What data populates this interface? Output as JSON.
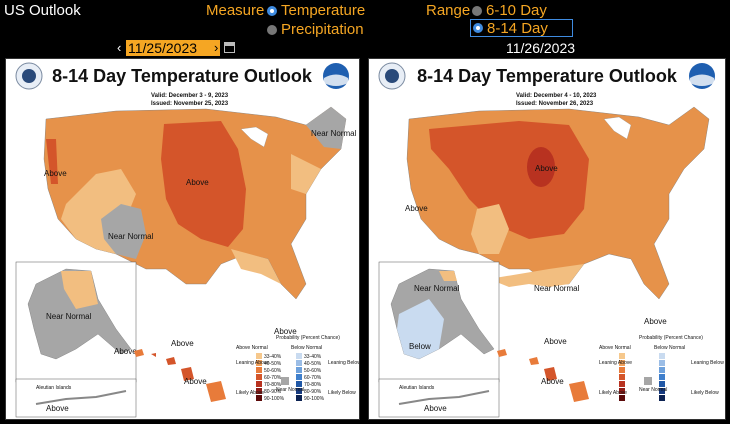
{
  "app": {
    "title": "US Outlook"
  },
  "measure": {
    "label": "Measure",
    "options": [
      {
        "label": "Temperature",
        "selected": true
      },
      {
        "label": "Precipitation",
        "selected": false
      }
    ]
  },
  "range": {
    "label": "Range",
    "options": [
      {
        "label": "6-10 Day",
        "selected": false
      },
      {
        "label": "8-14 Day",
        "selected": true
      }
    ]
  },
  "dates": {
    "left": "11/25/2023",
    "right": "11/26/2023",
    "prev_glyph": "‹",
    "next_glyph": "›"
  },
  "maps": [
    {
      "title": "8-14 Day Temperature Outlook",
      "valid": "Valid:  December 3 - 9, 2023",
      "issued": "Issued:  November 25, 2023",
      "labels": [
        "Above",
        "Above",
        "Near Normal",
        "Near Normal",
        "Above",
        "Near Normal",
        "Above",
        "Above",
        "Above",
        "Above",
        "Aleutian Islands",
        "Above"
      ]
    },
    {
      "title": "8-14 Day Temperature Outlook",
      "valid": "Valid:  December 4 - 10, 2023",
      "issued": "Issued:  November 26, 2023",
      "labels": [
        "Above",
        "Above",
        "Near Normal",
        "Near Normal",
        "Below",
        "Above",
        "Above",
        "Above",
        "Above",
        "Aleutian Islands",
        "Above"
      ]
    }
  ],
  "legend": {
    "title": "Probability (Percent Chance)",
    "above": "Above Normal",
    "below": "Below Normal",
    "leaning_above": "Leaning Above",
    "leaning_below": "Leaning Below",
    "likely_above": "Likely Above",
    "likely_below": "Likely Below",
    "near_normal": "Near Normal",
    "bins": [
      "33-40%",
      "40-50%",
      "50-60%",
      "60-70%",
      "70-80%",
      "80-90%",
      "90-100%"
    ],
    "above_colors": [
      "#f6c88c",
      "#f0a05a",
      "#e87b3a",
      "#d4552a",
      "#b83220",
      "#8e1c18",
      "#5c0a0a"
    ],
    "below_colors": [
      "#c9dbf0",
      "#9bbde6",
      "#6ea1dc",
      "#3f7fcc",
      "#2158a6",
      "#173b80",
      "#0c2252"
    ],
    "near_color": "#a6a6a6"
  },
  "colors": {
    "accent": "#f5a623",
    "radio_on": "#3f8be0",
    "highlight_border": "#3f8be0"
  }
}
